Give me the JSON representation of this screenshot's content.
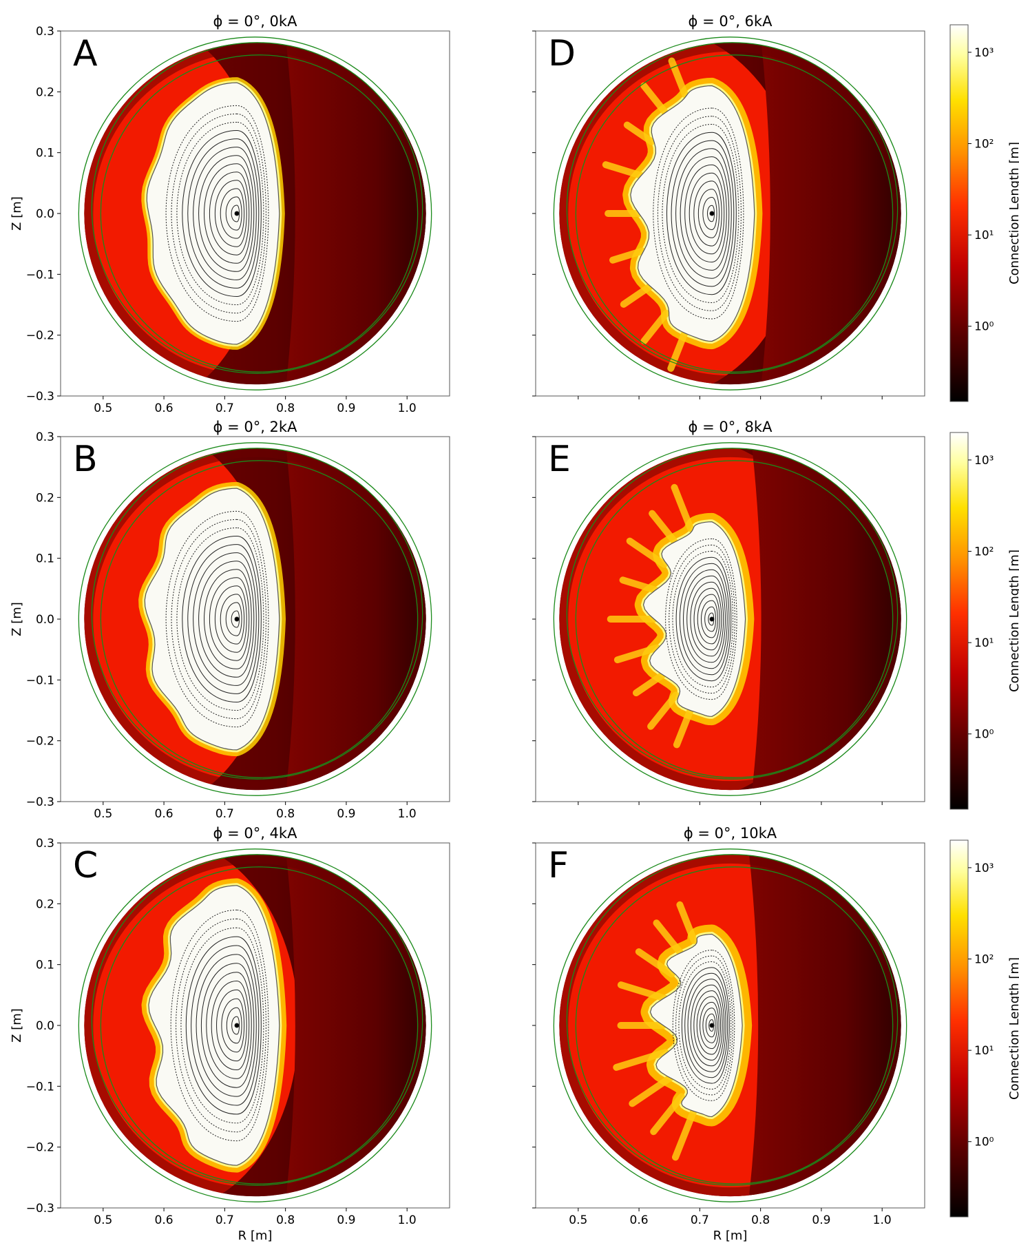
{
  "chart_data": [
    {
      "type": "heatmap",
      "panel": "A",
      "title": "ϕ = 0°, 0kA",
      "angle_deg": 0,
      "current_kA": 0,
      "xlim": [
        0.43,
        1.07
      ],
      "ylim": [
        -0.3,
        0.3
      ],
      "xticks": [
        "0.5",
        "0.6",
        "0.7",
        "0.8",
        "0.9",
        "1.0"
      ],
      "yticks": [
        "0.3",
        "0.2",
        "0.1",
        "0.0",
        "−0.1",
        "−0.2",
        "−0.3"
      ],
      "xlabel": "",
      "ylabel": "Z [m]",
      "core_r": 0.72,
      "core_extent": [
        0.575,
        0.79
      ],
      "core_half_height": 0.215,
      "wall": {
        "center": [
          0.75,
          0.0
        ],
        "radius": 0.29
      }
    },
    {
      "type": "heatmap",
      "panel": "B",
      "title": "ϕ = 0°, 2kA",
      "angle_deg": 0,
      "current_kA": 2,
      "xlim": [
        0.43,
        1.07
      ],
      "ylim": [
        -0.3,
        0.3
      ],
      "xticks": [
        "0.5",
        "0.6",
        "0.7",
        "0.8",
        "0.9",
        "1.0"
      ],
      "yticks": [
        "0.3",
        "0.2",
        "0.1",
        "0.0",
        "−0.1",
        "−0.2",
        "−0.3"
      ],
      "xlabel": "",
      "ylabel": "Z [m]",
      "core_r": 0.72,
      "core_extent": [
        0.575,
        0.79
      ],
      "core_half_height": 0.215,
      "wall": {
        "center": [
          0.75,
          0.0
        ],
        "radius": 0.29
      }
    },
    {
      "type": "heatmap",
      "panel": "C",
      "title": "ϕ = 0°, 4kA",
      "angle_deg": 0,
      "current_kA": 4,
      "xlim": [
        0.43,
        1.07
      ],
      "ylim": [
        -0.3,
        0.3
      ],
      "xticks": [
        "0.5",
        "0.6",
        "0.7",
        "0.8",
        "0.9",
        "1.0"
      ],
      "yticks": [
        "0.3",
        "0.2",
        "0.1",
        "0.0",
        "−0.1",
        "−0.2",
        "−0.3"
      ],
      "xlabel": "R [m]",
      "ylabel": "Z [m]",
      "core_r": 0.72,
      "core_extent": [
        0.585,
        0.79
      ],
      "core_half_height": 0.23,
      "wall": {
        "center": [
          0.75,
          0.0
        ],
        "radius": 0.29
      }
    },
    {
      "type": "heatmap",
      "panel": "D",
      "title": "ϕ = 0°, 6kA",
      "angle_deg": 0,
      "current_kA": 6,
      "xlim": [
        0.43,
        1.07
      ],
      "ylim": [
        -0.3,
        0.3
      ],
      "xticks": [],
      "yticks": [],
      "xlabel": "",
      "ylabel": "",
      "core_r": 0.72,
      "core_extent": [
        0.6,
        0.79
      ],
      "core_half_height": 0.21,
      "wall": {
        "center": [
          0.75,
          0.0
        ],
        "radius": 0.29
      }
    },
    {
      "type": "heatmap",
      "panel": "E",
      "title": "ϕ = 0°, 8kA",
      "angle_deg": 0,
      "current_kA": 8,
      "xlim": [
        0.43,
        1.07
      ],
      "ylim": [
        -0.3,
        0.3
      ],
      "xticks": [],
      "yticks": [],
      "xlabel": "",
      "ylabel": "",
      "core_r": 0.72,
      "core_extent": [
        0.625,
        0.775
      ],
      "core_half_height": 0.16,
      "wall": {
        "center": [
          0.75,
          0.0
        ],
        "radius": 0.29
      }
    },
    {
      "type": "heatmap",
      "panel": "F",
      "title": "ϕ = 0°, 10kA",
      "angle_deg": 0,
      "current_kA": 10,
      "xlim": [
        0.43,
        1.07
      ],
      "ylim": [
        -0.3,
        0.3
      ],
      "xticks": [
        "0.5",
        "0.6",
        "0.7",
        "0.8",
        "0.9",
        "1.0"
      ],
      "yticks": [],
      "xlabel": "R [m]",
      "ylabel": "",
      "core_r": 0.72,
      "core_extent": [
        0.64,
        0.77
      ],
      "core_half_height": 0.15,
      "wall": {
        "center": [
          0.75,
          0.0
        ],
        "radius": 0.29
      }
    }
  ],
  "colorbar": {
    "label": "Connection Length [m]",
    "ticks": [
      "10³",
      "10²",
      "10¹",
      "10⁰"
    ],
    "tick_values": [
      1000,
      100,
      10,
      1
    ],
    "scale": "log",
    "range": [
      0.15,
      2000
    ],
    "colormap": "hot"
  },
  "colors": {
    "wall_line": "#1a8a1a",
    "core_fill": "#fafaf4",
    "field_line": "#222222"
  }
}
